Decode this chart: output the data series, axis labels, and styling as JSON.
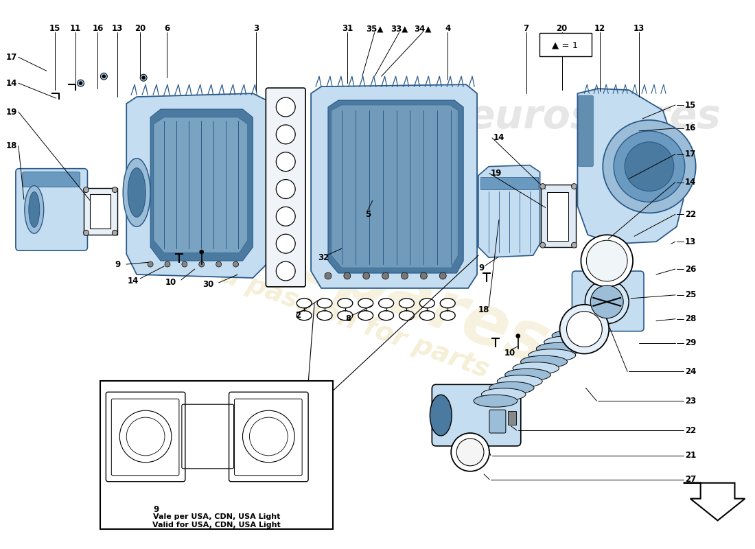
{
  "bg_color": "#ffffff",
  "watermark_color_yellow": "#d4b84a",
  "watermark_color_grey": "#c8c8c8",
  "part_blue_light": "#c5ddf0",
  "part_blue_mid": "#9bbdd8",
  "part_blue_dark": "#6a9abf",
  "part_blue_darker": "#4a7a9f",
  "part_grey_light": "#d8d8d8",
  "part_grey_dark": "#888888",
  "edge_color": "#2a5a8a",
  "line_color": "#000000",
  "label_fontsize": 8.5,
  "legend_text": "▲ = 1",
  "inset_line1": "Vale per USA, CDN, USA Light",
  "inset_line2": "Valid for USA, CDN, USA Light"
}
